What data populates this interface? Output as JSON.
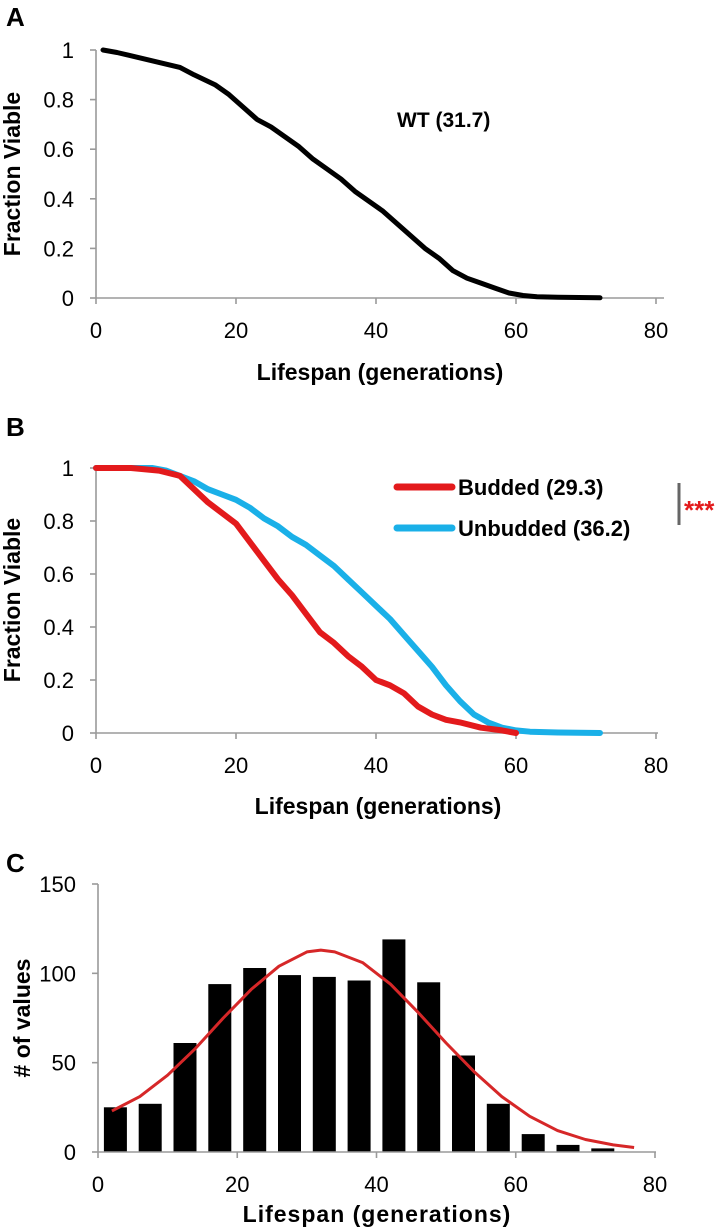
{
  "colors": {
    "wt": "#000000",
    "budded": "#e31a1c",
    "unbudded": "#1ab0e8",
    "bars": "#000000",
    "fit": "#d62728",
    "significance": "#e31a1c",
    "bracket": "#666666"
  },
  "chart_data": [
    {
      "panel": "A",
      "type": "line",
      "xlabel": "Lifespan (generations)",
      "ylabel": "Fraction Viable",
      "xlim": [
        0,
        80
      ],
      "ylim": [
        0,
        1
      ],
      "xticks": [
        "0",
        "20",
        "40",
        "60",
        "80"
      ],
      "yticks": [
        "0",
        "0.2",
        "0.4",
        "0.6",
        "0.8",
        "1"
      ],
      "annotation": "WT (31.7)",
      "series": [
        {
          "x": [
            1,
            3,
            6,
            9,
            12,
            14,
            17,
            19,
            21,
            23,
            25,
            27,
            29,
            31,
            33,
            35,
            37,
            39,
            41,
            43,
            45,
            47,
            49,
            51,
            53,
            55,
            57,
            59,
            61,
            63,
            66,
            69,
            72
          ],
          "values": [
            1,
            0.99,
            0.97,
            0.95,
            0.93,
            0.9,
            0.86,
            0.82,
            0.77,
            0.72,
            0.69,
            0.65,
            0.61,
            0.56,
            0.52,
            0.48,
            0.43,
            0.39,
            0.35,
            0.3,
            0.25,
            0.2,
            0.16,
            0.11,
            0.08,
            0.06,
            0.04,
            0.02,
            0.01,
            0.005,
            0.003,
            0.002,
            0.001
          ]
        }
      ]
    },
    {
      "panel": "B",
      "type": "line",
      "xlabel": "Lifespan (generations)",
      "ylabel": "Fraction Viable",
      "xlim": [
        0,
        80
      ],
      "ylim": [
        0,
        1
      ],
      "xticks": [
        "0",
        "20",
        "40",
        "60",
        "80"
      ],
      "yticks": [
        "0",
        "0.2",
        "0.4",
        "0.6",
        "0.8",
        "1"
      ],
      "significance": "***",
      "series": [
        {
          "name": "Budded (29.3)",
          "x": [
            0,
            5,
            9,
            12,
            14,
            16,
            18,
            20,
            22,
            24,
            26,
            28,
            30,
            32,
            34,
            36,
            38,
            40,
            42,
            44,
            46,
            48,
            50,
            52,
            55,
            58,
            60
          ],
          "values": [
            1,
            1,
            0.99,
            0.97,
            0.92,
            0.87,
            0.83,
            0.79,
            0.72,
            0.65,
            0.58,
            0.52,
            0.45,
            0.38,
            0.34,
            0.29,
            0.25,
            0.2,
            0.18,
            0.15,
            0.1,
            0.07,
            0.05,
            0.04,
            0.02,
            0.01,
            0
          ]
        },
        {
          "name": "Unbudded (36.2)",
          "x": [
            0,
            4,
            8,
            10,
            12,
            14,
            16,
            18,
            20,
            22,
            24,
            26,
            28,
            30,
            32,
            34,
            36,
            38,
            40,
            42,
            44,
            46,
            48,
            50,
            52,
            54,
            56,
            58,
            60,
            62,
            66,
            72
          ],
          "values": [
            1,
            1,
            1,
            0.99,
            0.97,
            0.95,
            0.92,
            0.9,
            0.88,
            0.85,
            0.81,
            0.78,
            0.74,
            0.71,
            0.67,
            0.63,
            0.58,
            0.53,
            0.48,
            0.43,
            0.37,
            0.31,
            0.25,
            0.18,
            0.12,
            0.07,
            0.04,
            0.02,
            0.01,
            0.005,
            0.002,
            0
          ]
        }
      ]
    },
    {
      "panel": "C",
      "type": "bar",
      "xlabel": "Lifespan (generations)",
      "ylabel": "# of values",
      "xlim": [
        0,
        80
      ],
      "ylim": [
        0,
        150
      ],
      "xticks": [
        "0",
        "20",
        "40",
        "60",
        "80"
      ],
      "yticks": [
        "0",
        "50",
        "100",
        "150"
      ],
      "bins": [
        2.5,
        7.5,
        12.5,
        17.5,
        22.5,
        27.5,
        32.5,
        37.5,
        42.5,
        47.5,
        52.5,
        57.5,
        62.5,
        67.5,
        72.5
      ],
      "values": [
        25,
        27,
        61,
        94,
        103,
        99,
        98,
        96,
        119,
        95,
        54,
        27,
        10,
        4,
        2
      ],
      "fit": {
        "x": [
          2,
          6,
          10,
          14,
          18,
          22,
          26,
          30,
          32,
          34,
          38,
          42,
          46,
          50,
          54,
          58,
          62,
          66,
          70,
          74,
          77
        ],
        "values": [
          23,
          31,
          43,
          58,
          75,
          91,
          104,
          112,
          113,
          112,
          106,
          94,
          78,
          61,
          45,
          31,
          20,
          12,
          7,
          4,
          2.5
        ]
      }
    }
  ],
  "labels": {
    "panel_a": "A",
    "panel_b": "B",
    "panel_c": "C"
  }
}
